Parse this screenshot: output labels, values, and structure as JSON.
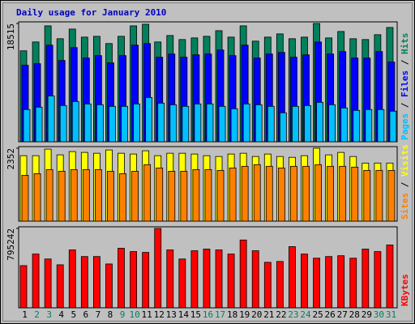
{
  "chart_data": {
    "type": "bar",
    "title": "Daily usage for January 2010",
    "categories": [
      "1",
      "2",
      "3",
      "4",
      "5",
      "6",
      "7",
      "8",
      "9",
      "10",
      "11",
      "12",
      "13",
      "14",
      "15",
      "16",
      "17",
      "18",
      "19",
      "20",
      "21",
      "22",
      "23",
      "24",
      "25",
      "26",
      "27",
      "28",
      "29",
      "30",
      "31"
    ],
    "category_colors": [
      "#000000",
      "#00805c",
      "#00805c",
      "#000000",
      "#000000",
      "#000000",
      "#000000",
      "#000000",
      "#00805c",
      "#00805c",
      "#000000",
      "#000000",
      "#000000",
      "#000000",
      "#000000",
      "#00805c",
      "#00805c",
      "#000000",
      "#000000",
      "#000000",
      "#000000",
      "#000000",
      "#00805c",
      "#00805c",
      "#000000",
      "#000000",
      "#000000",
      "#000000",
      "#000000",
      "#00805c",
      "#00805c"
    ],
    "panels": [
      {
        "ylim": [
          0,
          18515
        ],
        "yticks": [
          18515
        ],
        "series": [
          {
            "name": "Hits",
            "color": "#00805c",
            "values": [
              14238,
              15624,
              18144,
              16128,
              17640,
              16380,
              16506,
              15372,
              16506,
              18144,
              18396,
              15624,
              16632,
              16002,
              16254,
              16506,
              17388,
              16380,
              18144,
              15750,
              16380,
              16884,
              16128,
              16380,
              18515,
              16254,
              17262,
              16128,
              16002,
              16758,
              17892
            ]
          },
          {
            "name": "Files",
            "color": "#0000ff",
            "values": [
              11970,
              12222,
              15120,
              12726,
              14742,
              13104,
              13482,
              12348,
              13482,
              15120,
              15372,
              13230,
              13734,
              13230,
              13608,
              13734,
              14364,
              13482,
              15120,
              13104,
              13734,
              13986,
              13230,
              13608,
              15624,
              13734,
              14112,
              13104,
              13104,
              14112,
              12474
            ]
          },
          {
            "name": "Pages",
            "color": "#00c0ff",
            "values": [
              5040,
              5418,
              7182,
              5670,
              6300,
              5922,
              5796,
              5544,
              5544,
              5922,
              6930,
              6048,
              5796,
              5544,
              5922,
              5922,
              5544,
              5166,
              5922,
              5796,
              5544,
              4536,
              5544,
              5670,
              6174,
              5796,
              5292,
              4914,
              5040,
              5040,
              4788
            ]
          }
        ]
      },
      {
        "ylim": [
          0,
          2352
        ],
        "yticks": [
          2352
        ],
        "series": [
          {
            "name": "Visits",
            "color": "#ffff00",
            "values": [
              2112,
              2112,
              2323,
              2138,
              2244,
              2218,
              2191,
              2297,
              2191,
              2165,
              2270,
              2112,
              2191,
              2191,
              2165,
              2112,
              2086,
              2165,
              2191,
              2086,
              2165,
              2086,
              2059,
              2112,
              2352,
              2138,
              2218,
              2086,
              1874,
              1874,
              1874
            ]
          },
          {
            "name": "Sites",
            "color": "#ff8000",
            "values": [
              1478,
              1531,
              1663,
              1610,
              1663,
              1663,
              1663,
              1610,
              1531,
              1610,
              1822,
              1716,
              1610,
              1610,
              1663,
              1663,
              1637,
              1716,
              1769,
              1822,
              1769,
              1716,
              1769,
              1769,
              1822,
              1769,
              1769,
              1742,
              1637,
              1637,
              1637
            ]
          }
        ]
      },
      {
        "ylim": [
          0,
          795242
        ],
        "yticks": [
          795242
        ],
        "series": [
          {
            "name": "KBytes",
            "color": "#ff0000",
            "values": [
              422484,
              538460,
              488756,
              430768,
              579880,
              513608,
              513608,
              439052,
              596448,
              563312,
              555028,
              795242,
              579880,
              488756,
              571596,
              588164,
              579880,
              538460,
              679288,
              571596,
              455620,
              463904,
              613016,
              538460,
              497040,
              513608,
              521892,
              497040,
              588164,
              563312,
              629584
            ]
          }
        ]
      }
    ]
  }
}
